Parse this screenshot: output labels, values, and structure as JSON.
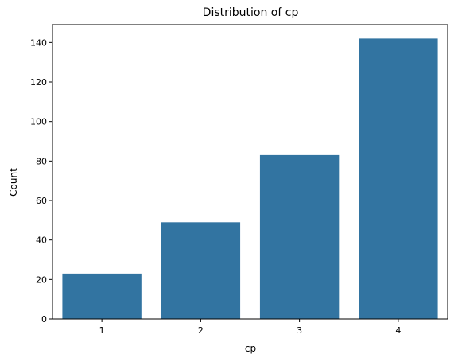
{
  "chart_data": {
    "type": "bar",
    "title": "Distribution of cp",
    "xlabel": "cp",
    "ylabel": "Count",
    "categories": [
      "1",
      "2",
      "3",
      "4"
    ],
    "values": [
      23,
      49,
      83,
      142
    ],
    "ylim": [
      0,
      149
    ],
    "yticks": [
      0,
      20,
      40,
      60,
      80,
      100,
      120,
      140
    ],
    "bar_color": "#3274a1",
    "grid": false
  }
}
